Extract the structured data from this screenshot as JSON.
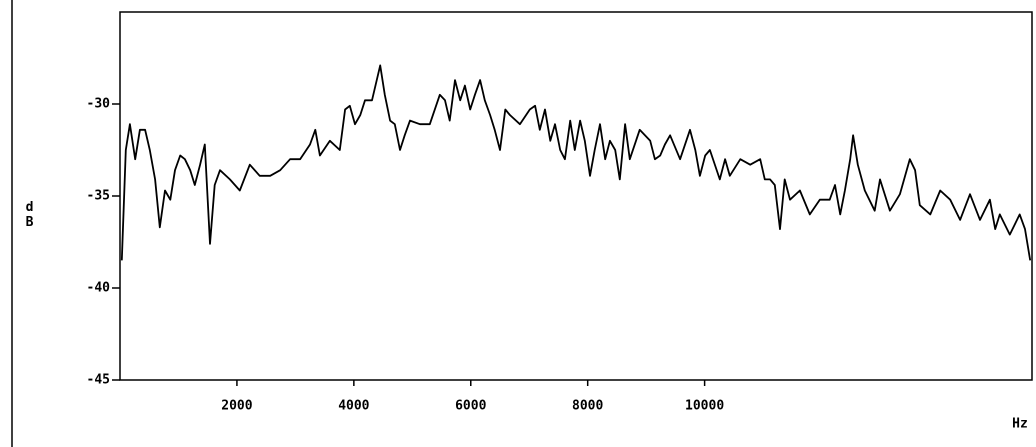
{
  "chart_data": {
    "type": "line",
    "y_label": "dB",
    "x_label": "Hz",
    "xlim": [
      0,
      15600
    ],
    "xticks": [
      2000,
      4000,
      6000,
      8000,
      10000
    ],
    "ylim": [
      -45,
      -25
    ],
    "yticks": [
      -30,
      -35,
      -40,
      -45
    ],
    "color": "#000000",
    "x": [
      30,
      100,
      170,
      260,
      340,
      430,
      510,
      600,
      680,
      770,
      860,
      940,
      1030,
      1110,
      1200,
      1280,
      1370,
      1450,
      1540,
      1620,
      1710,
      1880,
      2050,
      2220,
      2390,
      2570,
      2740,
      2910,
      3080,
      3250,
      3340,
      3420,
      3590,
      3760,
      3850,
      3930,
      4020,
      4110,
      4190,
      4310,
      4450,
      4530,
      4620,
      4700,
      4790,
      4870,
      4960,
      5130,
      5300,
      5470,
      5560,
      5640,
      5730,
      5820,
      5900,
      5990,
      6070,
      6160,
      6240,
      6330,
      6410,
      6500,
      6590,
      6670,
      6840,
      7010,
      7100,
      7180,
      7270,
      7360,
      7440,
      7530,
      7610,
      7700,
      7780,
      7870,
      7950,
      8040,
      8120,
      8210,
      8300,
      8380,
      8470,
      8550,
      8640,
      8720,
      8890,
      9070,
      9150,
      9240,
      9320,
      9410,
      9580,
      9750,
      9840,
      9920,
      10010,
      10090,
      10260,
      10350,
      10430,
      10610,
      10780,
      10950,
      11030,
      11120,
      11200,
      11290,
      11370,
      11460,
      11630,
      11800,
      11970,
      12140,
      12230,
      12320,
      12400,
      12490,
      12540,
      12620,
      12740,
      12910,
      13000,
      13170,
      13340,
      13510,
      13600,
      13680,
      13860,
      14030,
      14200,
      14370,
      14540,
      14710,
      14880,
      14970,
      15050,
      15220,
      15390,
      15480,
      15570
    ],
    "values": [
      -38.5,
      -32.5,
      -31.1,
      -33.0,
      -31.4,
      -31.4,
      -32.5,
      -34.1,
      -36.7,
      -34.7,
      -35.2,
      -33.6,
      -32.8,
      -33.0,
      -33.6,
      -34.4,
      -33.3,
      -32.2,
      -37.6,
      -34.4,
      -33.6,
      -34.1,
      -34.7,
      -33.3,
      -33.9,
      -33.9,
      -33.6,
      -33.0,
      -33.0,
      -32.2,
      -31.4,
      -32.8,
      -32.0,
      -32.5,
      -30.3,
      -30.1,
      -31.1,
      -30.6,
      -29.8,
      -29.8,
      -27.9,
      -29.5,
      -30.9,
      -31.1,
      -32.5,
      -31.7,
      -30.9,
      -31.1,
      -31.1,
      -29.5,
      -29.8,
      -30.9,
      -28.7,
      -29.8,
      -29.0,
      -30.3,
      -29.5,
      -28.7,
      -29.8,
      -30.6,
      -31.4,
      -32.5,
      -30.3,
      -30.6,
      -31.1,
      -30.3,
      -30.1,
      -31.4,
      -30.3,
      -32.0,
      -31.1,
      -32.5,
      -33.0,
      -30.9,
      -32.5,
      -30.9,
      -32.0,
      -33.9,
      -32.5,
      -31.1,
      -33.0,
      -32.0,
      -32.5,
      -34.1,
      -31.1,
      -33.0,
      -31.4,
      -32.0,
      -33.0,
      -32.8,
      -32.2,
      -31.7,
      -33.0,
      -31.4,
      -32.5,
      -33.9,
      -32.8,
      -32.5,
      -34.1,
      -33.0,
      -33.9,
      -33.0,
      -33.3,
      -33.0,
      -34.1,
      -34.1,
      -34.4,
      -36.8,
      -34.1,
      -35.2,
      -34.7,
      -36.0,
      -35.2,
      -35.2,
      -34.4,
      -36.0,
      -34.7,
      -33.0,
      -31.7,
      -33.3,
      -34.7,
      -35.8,
      -34.1,
      -35.8,
      -34.9,
      -33.0,
      -33.6,
      -35.5,
      -36.0,
      -34.7,
      -35.2,
      -36.3,
      -34.9,
      -36.3,
      -35.2,
      -36.8,
      -36.0,
      -37.1,
      -36.0,
      -36.8,
      -38.5
    ]
  }
}
